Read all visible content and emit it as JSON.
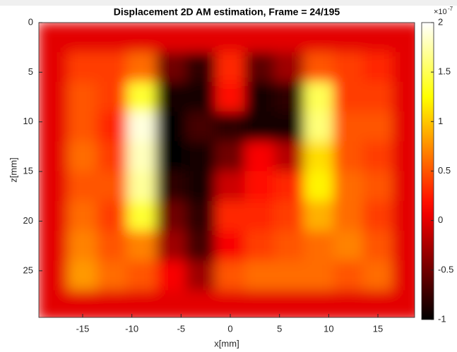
{
  "chart_data": {
    "type": "heatmap",
    "title": "Displacement 2D AM estimation, Frame = 24/195",
    "x_label": "x[mm]",
    "y_label": "z[mm]",
    "colormap": "hot",
    "x": [
      -18,
      -15,
      -12,
      -9,
      -6,
      -3,
      0,
      3,
      6,
      9,
      12,
      15,
      18
    ],
    "z": [
      1.5,
      4.5,
      7.5,
      10.5,
      13.5,
      16.5,
      19.5,
      22.5,
      25.5,
      28.5
    ],
    "values": [
      [
        0,
        0,
        0,
        0,
        0,
        0,
        0,
        0,
        0,
        0,
        0,
        0,
        0
      ],
      [
        0,
        0.4,
        0.4,
        0.6,
        -0.5,
        -0.8,
        0.3,
        -0.6,
        -0.3,
        0.5,
        0.4,
        0.3,
        0
      ],
      [
        0,
        0.5,
        0.4,
        1.4,
        -0.9,
        -0.9,
        0.2,
        -0.9,
        -0.8,
        1.5,
        0.4,
        0.4,
        0
      ],
      [
        0,
        0.5,
        0.3,
        1.9,
        -1,
        -0.7,
        -0.8,
        -0.9,
        -0.9,
        1.6,
        0.5,
        0.5,
        0
      ],
      [
        0,
        0.6,
        0.4,
        1.8,
        -1,
        -0.9,
        -0.5,
        0.1,
        -0.2,
        1.1,
        0.5,
        0.4,
        0
      ],
      [
        0,
        0.5,
        0.5,
        1.7,
        -0.8,
        -0.9,
        -0.1,
        0.2,
        0.3,
        1.2,
        0.6,
        0.5,
        0
      ],
      [
        0,
        0.6,
        0.4,
        1.4,
        -0.5,
        -0.8,
        0.3,
        0.3,
        0.4,
        0.9,
        0.6,
        0.4,
        0
      ],
      [
        0,
        0.7,
        0.5,
        0.7,
        -0.3,
        -0.7,
        0.1,
        0.4,
        0.5,
        0.6,
        0.7,
        0.5,
        0
      ],
      [
        0,
        0.8,
        0.6,
        0.5,
        0.1,
        -0.3,
        0.5,
        0.6,
        0.6,
        0.6,
        0.5,
        0.6,
        0
      ],
      [
        0,
        0,
        0,
        0,
        0,
        0,
        0,
        0,
        0,
        0,
        0,
        0,
        0
      ]
    ],
    "xlim": [
      -19.45,
      18.73
    ],
    "ylim": [
      0,
      29.7
    ],
    "y_reversed": true,
    "xticks": [
      -15,
      -10,
      -5,
      0,
      5,
      10,
      15
    ],
    "yticks": [
      0,
      5,
      10,
      15,
      20,
      25
    ],
    "clim": [
      -1,
      2
    ],
    "colorbar_ticks": [
      -1,
      -0.5,
      0,
      0.5,
      1,
      1.5,
      2
    ],
    "colorbar_exponent_base": "×10",
    "colorbar_exponent": "-7"
  }
}
